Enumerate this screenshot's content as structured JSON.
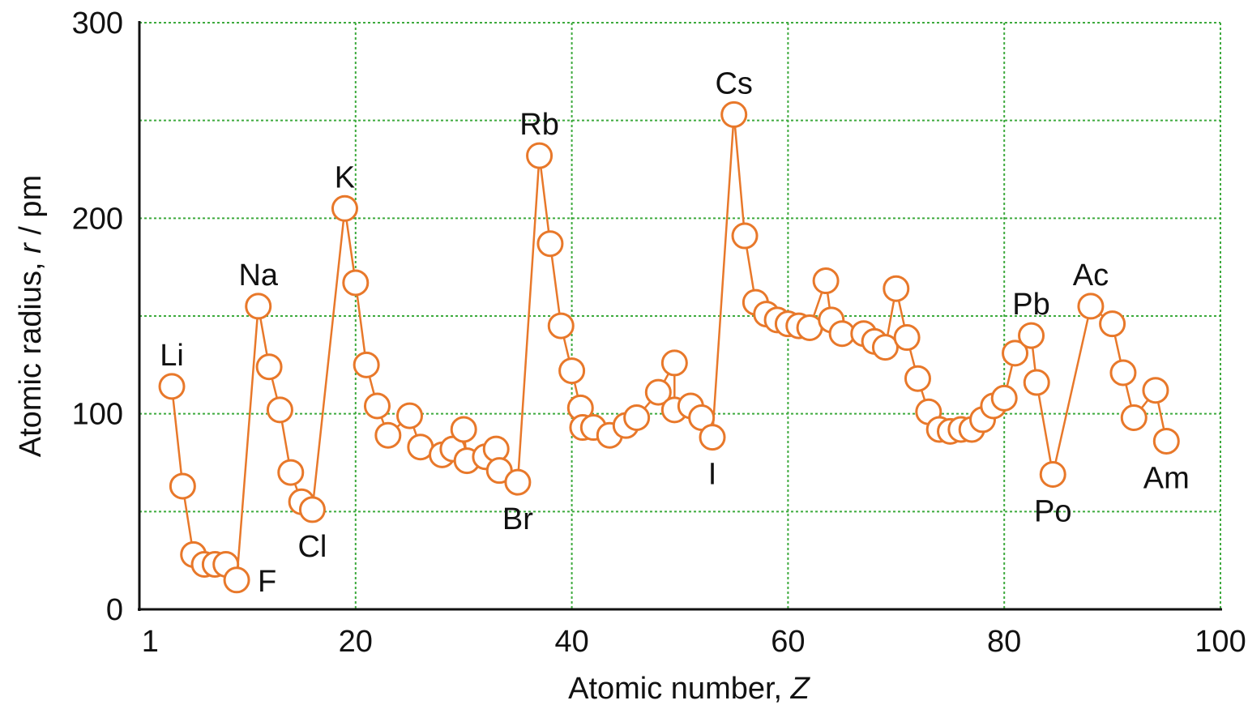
{
  "chart_data": {
    "type": "line",
    "title": "",
    "xlabel": "Atomic number, ",
    "xlabel_var": "Z",
    "ylabel": "Atomic radius, ",
    "ylabel_var": "r",
    "ylabel_suffix": " / pm",
    "xlim": [
      0,
      100
    ],
    "ylim": [
      0,
      300
    ],
    "xticks": [
      {
        "value": 1,
        "label": "1"
      },
      {
        "value": 20,
        "label": "20"
      },
      {
        "value": 40,
        "label": "40"
      },
      {
        "value": 60,
        "label": "60"
      },
      {
        "value": 80,
        "label": "80"
      },
      {
        "value": 100,
        "label": "100"
      }
    ],
    "yticks": [
      {
        "value": 0,
        "label": "0"
      },
      {
        "value": 100,
        "label": "100"
      },
      {
        "value": 200,
        "label": "200"
      },
      {
        "value": 300,
        "label": "300"
      }
    ],
    "grid": true,
    "grid_y_values": [
      0,
      50,
      100,
      150,
      200,
      250,
      300
    ],
    "grid_x_values": [
      20,
      40,
      60,
      80,
      100
    ],
    "colors": {
      "line": "#e8782a",
      "marker_fill": "#ffffff",
      "grid": "#3daa3d",
      "axis": "#111111",
      "text": "#111111"
    },
    "series": [
      {
        "points": [
          {
            "x": 3,
            "y": 114
          },
          {
            "x": 4,
            "y": 63
          },
          {
            "x": 5,
            "y": 28
          },
          {
            "x": 6,
            "y": 23
          },
          {
            "x": 7,
            "y": 23
          },
          {
            "x": 8,
            "y": 23
          },
          {
            "x": 9,
            "y": 15
          },
          {
            "x": 11,
            "y": 155
          },
          {
            "x": 12,
            "y": 124
          },
          {
            "x": 13,
            "y": 102
          },
          {
            "x": 14,
            "y": 70
          },
          {
            "x": 15,
            "y": 55
          },
          {
            "x": 16,
            "y": 51
          },
          {
            "x": 19,
            "y": 205
          },
          {
            "x": 20,
            "y": 167
          },
          {
            "x": 21,
            "y": 125
          },
          {
            "x": 22,
            "y": 104
          },
          {
            "x": 23,
            "y": 89
          },
          {
            "x": 25,
            "y": 99
          },
          {
            "x": 26,
            "y": 83
          },
          {
            "x": 28,
            "y": 79
          },
          {
            "x": 29,
            "y": 82
          },
          {
            "x": 30,
            "y": 92
          },
          {
            "x": 30.3,
            "y": 76
          },
          {
            "x": 32,
            "y": 78
          },
          {
            "x": 33,
            "y": 82
          },
          {
            "x": 33.3,
            "y": 71
          },
          {
            "x": 35,
            "y": 65
          },
          {
            "x": 37,
            "y": 232
          },
          {
            "x": 38,
            "y": 187
          },
          {
            "x": 39,
            "y": 145
          },
          {
            "x": 40,
            "y": 122
          },
          {
            "x": 40.8,
            "y": 103
          },
          {
            "x": 41,
            "y": 93
          },
          {
            "x": 42,
            "y": 93
          },
          {
            "x": 43.5,
            "y": 89
          },
          {
            "x": 45,
            "y": 94
          },
          {
            "x": 46,
            "y": 98
          },
          {
            "x": 48,
            "y": 111
          },
          {
            "x": 49.5,
            "y": 126
          },
          {
            "x": 49.5,
            "y": 102
          },
          {
            "x": 51,
            "y": 104
          },
          {
            "x": 52,
            "y": 98
          },
          {
            "x": 53,
            "y": 88
          },
          {
            "x": 55,
            "y": 253
          },
          {
            "x": 56,
            "y": 191
          },
          {
            "x": 57,
            "y": 157
          },
          {
            "x": 58,
            "y": 151
          },
          {
            "x": 59,
            "y": 148
          },
          {
            "x": 60,
            "y": 146
          },
          {
            "x": 61,
            "y": 145
          },
          {
            "x": 62,
            "y": 144
          },
          {
            "x": 63.5,
            "y": 168
          },
          {
            "x": 64,
            "y": 148
          },
          {
            "x": 65,
            "y": 141
          },
          {
            "x": 67,
            "y": 141
          },
          {
            "x": 68,
            "y": 137
          },
          {
            "x": 69,
            "y": 134
          },
          {
            "x": 70,
            "y": 164
          },
          {
            "x": 71,
            "y": 139
          },
          {
            "x": 72,
            "y": 118
          },
          {
            "x": 73,
            "y": 101
          },
          {
            "x": 74,
            "y": 92
          },
          {
            "x": 75,
            "y": 91
          },
          {
            "x": 76,
            "y": 92
          },
          {
            "x": 77,
            "y": 92
          },
          {
            "x": 78,
            "y": 97
          },
          {
            "x": 79,
            "y": 104
          },
          {
            "x": 80,
            "y": 108
          },
          {
            "x": 81,
            "y": 131
          },
          {
            "x": 82.5,
            "y": 140
          },
          {
            "x": 83,
            "y": 116
          },
          {
            "x": 84.5,
            "y": 69
          },
          {
            "x": 88,
            "y": 155
          },
          {
            "x": 90,
            "y": 146
          },
          {
            "x": 91,
            "y": 121
          },
          {
            "x": 92,
            "y": 98
          },
          {
            "x": 94,
            "y": 112
          },
          {
            "x": 95,
            "y": 86
          }
        ]
      }
    ],
    "annotations": [
      {
        "text": "Li",
        "x": 3,
        "y": 114,
        "placement": "above"
      },
      {
        "text": "F",
        "x": 9,
        "y": 15,
        "placement": "right"
      },
      {
        "text": "Na",
        "x": 11,
        "y": 155,
        "placement": "above"
      },
      {
        "text": "Cl",
        "x": 16,
        "y": 51,
        "placement": "below"
      },
      {
        "text": "K",
        "x": 19,
        "y": 205,
        "placement": "above"
      },
      {
        "text": "Rb",
        "x": 37,
        "y": 232,
        "placement": "above"
      },
      {
        "text": "Br",
        "x": 35,
        "y": 65,
        "placement": "below"
      },
      {
        "text": "I",
        "x": 53,
        "y": 88,
        "placement": "below"
      },
      {
        "text": "Cs",
        "x": 55,
        "y": 253,
        "placement": "above"
      },
      {
        "text": "Pb",
        "x": 82.5,
        "y": 140,
        "placement": "above"
      },
      {
        "text": "Po",
        "x": 84.5,
        "y": 69,
        "placement": "below"
      },
      {
        "text": "Ac",
        "x": 88,
        "y": 155,
        "placement": "above"
      },
      {
        "text": "Am",
        "x": 95,
        "y": 86,
        "placement": "below"
      }
    ]
  }
}
